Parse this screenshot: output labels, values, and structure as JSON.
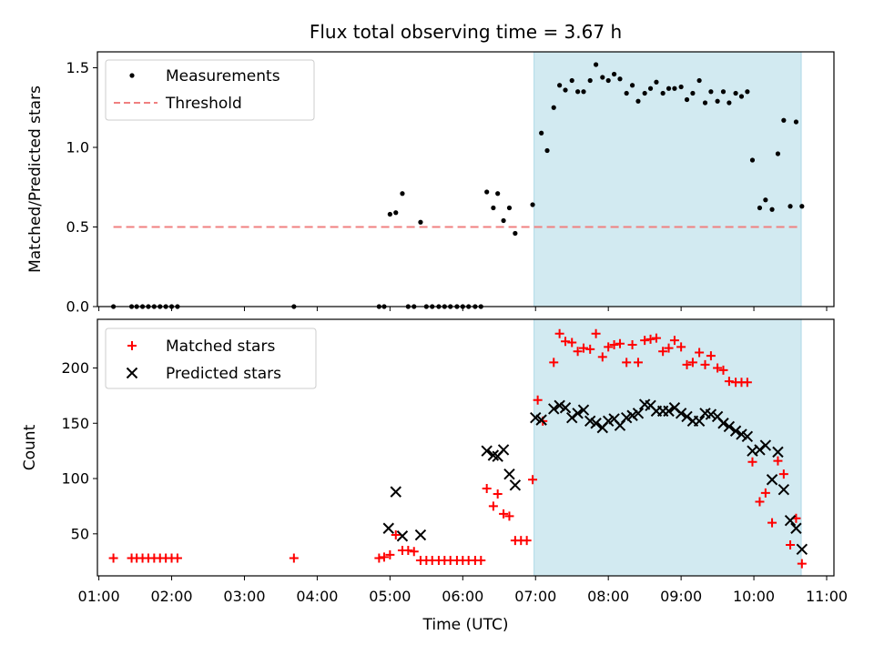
{
  "chart_data": [
    {
      "type": "scatter",
      "title": "Flux total observing time = 3.67 h",
      "xlabel": "",
      "ylabel": "Matched/Predicted stars",
      "xlim": [
        0.98,
        11.1
      ],
      "ylim": [
        0,
        1.6
      ],
      "yticks": [
        0.0,
        0.5,
        1.0,
        1.5
      ],
      "ytick_labels": [
        "0.0",
        "0.5",
        "1.0",
        "1.5"
      ],
      "shaded_span": {
        "x_start": 6.98,
        "x_end": 10.65,
        "color": "#add8e6"
      },
      "legend": {
        "placement": "top-left",
        "entries": [
          "Measurements",
          "Threshold"
        ]
      },
      "series": [
        {
          "name": "Measurements",
          "style": "dot",
          "color": "#000000",
          "points": [
            [
              1.2,
              0
            ],
            [
              1.45,
              0
            ],
            [
              1.52,
              0
            ],
            [
              1.6,
              0
            ],
            [
              1.68,
              0
            ],
            [
              1.76,
              0
            ],
            [
              1.84,
              0
            ],
            [
              1.92,
              0
            ],
            [
              2.0,
              0
            ],
            [
              2.08,
              0
            ],
            [
              3.68,
              0
            ],
            [
              4.85,
              0
            ],
            [
              4.92,
              0
            ],
            [
              5.0,
              0.58
            ],
            [
              5.08,
              0.59
            ],
            [
              5.17,
              0.71
            ],
            [
              5.25,
              0
            ],
            [
              5.33,
              0
            ],
            [
              5.42,
              0.53
            ],
            [
              5.5,
              0
            ],
            [
              5.58,
              0
            ],
            [
              5.67,
              0
            ],
            [
              5.75,
              0
            ],
            [
              5.83,
              0
            ],
            [
              5.92,
              0
            ],
            [
              6.0,
              0
            ],
            [
              6.08,
              0
            ],
            [
              6.17,
              0
            ],
            [
              6.25,
              0
            ],
            [
              6.33,
              0.72
            ],
            [
              6.42,
              0.62
            ],
            [
              6.48,
              0.71
            ],
            [
              6.56,
              0.54
            ],
            [
              6.64,
              0.62
            ],
            [
              6.72,
              0.46
            ],
            [
              6.96,
              0.64
            ],
            [
              7.08,
              1.09
            ],
            [
              7.16,
              0.98
            ],
            [
              7.25,
              1.25
            ],
            [
              7.33,
              1.39
            ],
            [
              7.41,
              1.36
            ],
            [
              7.5,
              1.42
            ],
            [
              7.58,
              1.35
            ],
            [
              7.66,
              1.35
            ],
            [
              7.75,
              1.42
            ],
            [
              7.83,
              1.52
            ],
            [
              7.92,
              1.44
            ],
            [
              8.0,
              1.42
            ],
            [
              8.08,
              1.46
            ],
            [
              8.16,
              1.43
            ],
            [
              8.25,
              1.34
            ],
            [
              8.33,
              1.39
            ],
            [
              8.41,
              1.29
            ],
            [
              8.5,
              1.34
            ],
            [
              8.58,
              1.37
            ],
            [
              8.66,
              1.41
            ],
            [
              8.75,
              1.34
            ],
            [
              8.83,
              1.37
            ],
            [
              8.91,
              1.37
            ],
            [
              9.0,
              1.38
            ],
            [
              9.08,
              1.3
            ],
            [
              9.16,
              1.34
            ],
            [
              9.25,
              1.42
            ],
            [
              9.33,
              1.28
            ],
            [
              9.41,
              1.35
            ],
            [
              9.5,
              1.29
            ],
            [
              9.58,
              1.35
            ],
            [
              9.66,
              1.28
            ],
            [
              9.75,
              1.34
            ],
            [
              9.83,
              1.32
            ],
            [
              9.91,
              1.35
            ],
            [
              9.98,
              0.92
            ],
            [
              10.08,
              0.62
            ],
            [
              10.16,
              0.67
            ],
            [
              10.25,
              0.61
            ],
            [
              10.33,
              0.96
            ],
            [
              10.41,
              1.17
            ],
            [
              10.5,
              0.63
            ],
            [
              10.58,
              1.16
            ],
            [
              10.66,
              0.63
            ]
          ]
        },
        {
          "name": "Threshold",
          "style": "dashed-line",
          "color": "#f08080",
          "points": [
            [
              1.2,
              0.5
            ],
            [
              10.65,
              0.5
            ]
          ]
        }
      ]
    },
    {
      "type": "scatter",
      "title": "",
      "xlabel": "Time (UTC)",
      "ylabel": "Count",
      "xlim": [
        0.98,
        11.1
      ],
      "ylim": [
        12,
        244
      ],
      "yticks": [
        50,
        100,
        150,
        200
      ],
      "ytick_labels": [
        "50",
        "100",
        "150",
        "200"
      ],
      "xticks": [
        1,
        2,
        3,
        4,
        5,
        6,
        7,
        8,
        9,
        10,
        11
      ],
      "xtick_labels": [
        "01:00",
        "02:00",
        "03:00",
        "04:00",
        "05:00",
        "06:00",
        "07:00",
        "08:00",
        "09:00",
        "10:00",
        "11:00"
      ],
      "shaded_span": {
        "x_start": 6.98,
        "x_end": 10.65,
        "color": "#add8e6"
      },
      "legend": {
        "placement": "top-left",
        "entries": [
          "Matched stars",
          "Predicted stars"
        ]
      },
      "series": [
        {
          "name": "Matched stars",
          "style": "plus",
          "color": "#ff0000",
          "points": [
            [
              1.2,
              28
            ],
            [
              1.45,
              28
            ],
            [
              1.52,
              28
            ],
            [
              1.6,
              28
            ],
            [
              1.68,
              28
            ],
            [
              1.76,
              28
            ],
            [
              1.84,
              28
            ],
            [
              1.92,
              28
            ],
            [
              2.0,
              28
            ],
            [
              2.08,
              28
            ],
            [
              3.68,
              28
            ],
            [
              4.85,
              28
            ],
            [
              4.92,
              29
            ],
            [
              5.0,
              31
            ],
            [
              5.08,
              49
            ],
            [
              5.17,
              35
            ],
            [
              5.25,
              35
            ],
            [
              5.33,
              34
            ],
            [
              5.42,
              26
            ],
            [
              5.5,
              26
            ],
            [
              5.58,
              26
            ],
            [
              5.67,
              26
            ],
            [
              5.75,
              26
            ],
            [
              5.83,
              26
            ],
            [
              5.92,
              26
            ],
            [
              6.0,
              26
            ],
            [
              6.08,
              26
            ],
            [
              6.17,
              26
            ],
            [
              6.25,
              26
            ],
            [
              6.33,
              91
            ],
            [
              6.42,
              75
            ],
            [
              6.48,
              86
            ],
            [
              6.56,
              68
            ],
            [
              6.64,
              66
            ],
            [
              6.72,
              44
            ],
            [
              6.8,
              44
            ],
            [
              6.88,
              44
            ],
            [
              6.96,
              99
            ],
            [
              7.03,
              171
            ],
            [
              7.1,
              152
            ],
            [
              7.25,
              205
            ],
            [
              7.33,
              231
            ],
            [
              7.41,
              224
            ],
            [
              7.5,
              223
            ],
            [
              7.58,
              215
            ],
            [
              7.66,
              218
            ],
            [
              7.75,
              217
            ],
            [
              7.83,
              231
            ],
            [
              7.92,
              210
            ],
            [
              8.0,
              219
            ],
            [
              8.08,
              221
            ],
            [
              8.16,
              222
            ],
            [
              8.25,
              205
            ],
            [
              8.33,
              221
            ],
            [
              8.41,
              205
            ],
            [
              8.5,
              225
            ],
            [
              8.58,
              226
            ],
            [
              8.66,
              227
            ],
            [
              8.75,
              215
            ],
            [
              8.83,
              218
            ],
            [
              8.91,
              225
            ],
            [
              9.0,
              219
            ],
            [
              9.08,
              203
            ],
            [
              9.16,
              205
            ],
            [
              9.25,
              214
            ],
            [
              9.33,
              203
            ],
            [
              9.41,
              211
            ],
            [
              9.5,
              200
            ],
            [
              9.58,
              198
            ],
            [
              9.66,
              188
            ],
            [
              9.75,
              187
            ],
            [
              9.83,
              187
            ],
            [
              9.91,
              187
            ],
            [
              9.98,
              115
            ],
            [
              10.08,
              79
            ],
            [
              10.16,
              87
            ],
            [
              10.25,
              60
            ],
            [
              10.33,
              116
            ],
            [
              10.41,
              104
            ],
            [
              10.5,
              40
            ],
            [
              10.58,
              64
            ],
            [
              10.66,
              23
            ]
          ]
        },
        {
          "name": "Predicted stars",
          "style": "x",
          "color": "#000000",
          "points": [
            [
              4.98,
              55
            ],
            [
              5.08,
              88
            ],
            [
              5.17,
              48
            ],
            [
              5.42,
              49
            ],
            [
              6.33,
              125
            ],
            [
              6.42,
              121
            ],
            [
              6.48,
              120
            ],
            [
              6.56,
              126
            ],
            [
              6.64,
              104
            ],
            [
              6.72,
              94
            ],
            [
              7.0,
              155
            ],
            [
              7.08,
              153
            ],
            [
              7.25,
              163
            ],
            [
              7.33,
              166
            ],
            [
              7.41,
              164
            ],
            [
              7.5,
              155
            ],
            [
              7.58,
              159
            ],
            [
              7.66,
              162
            ],
            [
              7.75,
              152
            ],
            [
              7.83,
              150
            ],
            [
              7.92,
              146
            ],
            [
              8.0,
              152
            ],
            [
              8.08,
              154
            ],
            [
              8.16,
              148
            ],
            [
              8.25,
              155
            ],
            [
              8.33,
              157
            ],
            [
              8.41,
              159
            ],
            [
              8.5,
              167
            ],
            [
              8.58,
              166
            ],
            [
              8.66,
              161
            ],
            [
              8.75,
              161
            ],
            [
              8.83,
              161
            ],
            [
              8.91,
              164
            ],
            [
              9.0,
              159
            ],
            [
              9.08,
              156
            ],
            [
              9.16,
              152
            ],
            [
              9.25,
              152
            ],
            [
              9.33,
              159
            ],
            [
              9.41,
              158
            ],
            [
              9.5,
              156
            ],
            [
              9.58,
              150
            ],
            [
              9.66,
              147
            ],
            [
              9.75,
              143
            ],
            [
              9.83,
              140
            ],
            [
              9.91,
              138
            ],
            [
              9.98,
              125
            ],
            [
              10.08,
              126
            ],
            [
              10.16,
              130
            ],
            [
              10.25,
              99
            ],
            [
              10.33,
              124
            ],
            [
              10.41,
              90
            ],
            [
              10.5,
              62
            ],
            [
              10.58,
              55
            ],
            [
              10.66,
              36
            ]
          ]
        }
      ]
    }
  ]
}
